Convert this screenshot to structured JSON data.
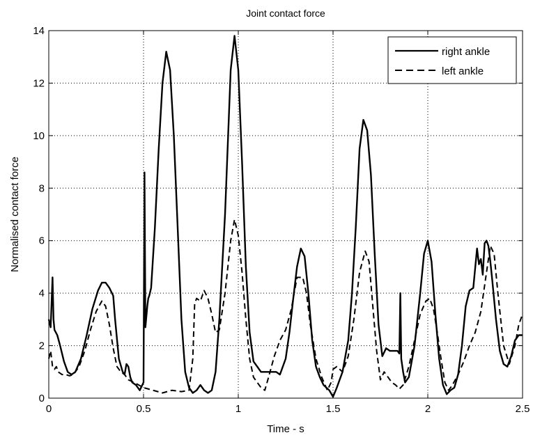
{
  "chart_data": {
    "type": "line",
    "title": "Joint contact force",
    "xlabel": "Time - s",
    "ylabel": "Normalised contact force",
    "xlim": [
      0,
      2.5
    ],
    "ylim": [
      0,
      14
    ],
    "xticks": [
      0,
      0.5,
      1,
      1.5,
      2,
      2.5
    ],
    "xtick_labels": [
      "0",
      "0.5",
      "1",
      "1.5",
      "2",
      "2.5"
    ],
    "yticks": [
      0,
      2,
      4,
      6,
      8,
      10,
      12,
      14
    ],
    "ytick_labels": [
      "0",
      "2",
      "4",
      "6",
      "8",
      "10",
      "12",
      "14"
    ],
    "grid": true,
    "grid_style": "dotted",
    "legend": "top-right",
    "series": [
      {
        "name": "right ankle",
        "style": "solid",
        "color": "#000000",
        "x": [
          0,
          0.01,
          0.02,
          0.025,
          0.03,
          0.045,
          0.06,
          0.08,
          0.1,
          0.12,
          0.14,
          0.17,
          0.2,
          0.23,
          0.26,
          0.28,
          0.3,
          0.32,
          0.34,
          0.35,
          0.37,
          0.39,
          0.4,
          0.41,
          0.42,
          0.43,
          0.44,
          0.46,
          0.48,
          0.5,
          0.505,
          0.51,
          0.52,
          0.525,
          0.53,
          0.54,
          0.56,
          0.58,
          0.6,
          0.62,
          0.64,
          0.66,
          0.68,
          0.7,
          0.72,
          0.74,
          0.76,
          0.78,
          0.8,
          0.82,
          0.84,
          0.86,
          0.88,
          0.9,
          0.93,
          0.96,
          0.98,
          1.0,
          1.02,
          1.04,
          1.06,
          1.08,
          1.1,
          1.12,
          1.14,
          1.17,
          1.2,
          1.22,
          1.25,
          1.27,
          1.29,
          1.31,
          1.33,
          1.35,
          1.37,
          1.39,
          1.41,
          1.43,
          1.45,
          1.48,
          1.5,
          1.52,
          1.55,
          1.58,
          1.6,
          1.62,
          1.64,
          1.66,
          1.68,
          1.7,
          1.72,
          1.74,
          1.76,
          1.78,
          1.8,
          1.82,
          1.84,
          1.85,
          1.855,
          1.86,
          1.87,
          1.88,
          1.9,
          1.93,
          1.96,
          1.98,
          2.0,
          2.02,
          2.04,
          2.06,
          2.08,
          2.1,
          2.12,
          2.14,
          2.16,
          2.18,
          2.2,
          2.22,
          2.24,
          2.26,
          2.27,
          2.28,
          2.29,
          2.3,
          2.31,
          2.32,
          2.33,
          2.34,
          2.36,
          2.38,
          2.4,
          2.42,
          2.44,
          2.46,
          2.48,
          2.5
        ],
        "y": [
          3.0,
          2.7,
          4.6,
          3.0,
          2.6,
          2.4,
          2.0,
          1.4,
          1.0,
          0.9,
          1.0,
          1.5,
          2.4,
          3.4,
          4.1,
          4.4,
          4.4,
          4.2,
          3.9,
          3.0,
          1.5,
          1.0,
          0.9,
          1.3,
          1.2,
          0.8,
          0.6,
          0.5,
          0.3,
          0.6,
          8.6,
          2.7,
          3.5,
          3.8,
          3.9,
          4.2,
          6.5,
          9.5,
          12.0,
          13.2,
          12.5,
          10.0,
          6.5,
          3.0,
          1.0,
          0.4,
          0.2,
          0.3,
          0.5,
          0.3,
          0.2,
          0.3,
          1.0,
          3.0,
          7.0,
          12.5,
          13.8,
          12.5,
          9.0,
          5.0,
          2.5,
          1.4,
          1.2,
          1.0,
          1.0,
          1.0,
          1.0,
          0.9,
          1.5,
          2.5,
          3.8,
          5.0,
          5.7,
          5.4,
          4.0,
          2.2,
          1.2,
          0.8,
          0.5,
          0.3,
          0.05,
          0.4,
          1.0,
          2.2,
          4.0,
          6.5,
          9.5,
          10.6,
          10.2,
          8.5,
          5.5,
          2.8,
          1.6,
          1.9,
          1.8,
          1.8,
          1.8,
          1.7,
          4.0,
          1.5,
          1.0,
          0.6,
          0.8,
          2.0,
          4.0,
          5.5,
          6.0,
          5.2,
          3.2,
          1.5,
          0.5,
          0.15,
          0.3,
          0.4,
          0.9,
          2.0,
          3.5,
          4.1,
          4.2,
          5.7,
          5.1,
          5.3,
          4.7,
          5.9,
          6.0,
          5.8,
          5.2,
          4.5,
          3.0,
          1.8,
          1.3,
          1.2,
          1.6,
          2.2,
          2.4,
          2.4
        ]
      },
      {
        "name": "left ankle",
        "style": "dashed",
        "color": "#000000",
        "x": [
          0,
          0.01,
          0.02,
          0.03,
          0.04,
          0.05,
          0.07,
          0.09,
          0.11,
          0.13,
          0.16,
          0.19,
          0.22,
          0.25,
          0.28,
          0.3,
          0.32,
          0.34,
          0.36,
          0.38,
          0.4,
          0.42,
          0.45,
          0.5,
          0.55,
          0.6,
          0.65,
          0.7,
          0.74,
          0.76,
          0.77,
          0.78,
          0.8,
          0.82,
          0.84,
          0.86,
          0.88,
          0.9,
          0.93,
          0.96,
          0.98,
          1.0,
          1.02,
          1.04,
          1.06,
          1.08,
          1.1,
          1.12,
          1.14,
          1.16,
          1.19,
          1.22,
          1.25,
          1.28,
          1.31,
          1.34,
          1.36,
          1.38,
          1.41,
          1.44,
          1.47,
          1.49,
          1.5,
          1.52,
          1.55,
          1.58,
          1.61,
          1.64,
          1.67,
          1.69,
          1.71,
          1.73,
          1.75,
          1.77,
          1.79,
          1.81,
          1.83,
          1.85,
          1.87,
          1.9,
          1.93,
          1.96,
          1.99,
          2.01,
          2.03,
          2.05,
          2.07,
          2.09,
          2.11,
          2.13,
          2.16,
          2.19,
          2.22,
          2.25,
          2.28,
          2.31,
          2.33,
          2.35,
          2.37,
          2.4,
          2.43,
          2.46,
          2.48,
          2.5
        ],
        "y": [
          1.5,
          1.8,
          1.2,
          1.1,
          1.2,
          1.0,
          0.9,
          0.9,
          0.85,
          0.9,
          1.2,
          1.8,
          2.6,
          3.3,
          3.7,
          3.5,
          2.8,
          1.9,
          1.2,
          1.0,
          0.9,
          0.7,
          0.6,
          0.4,
          0.3,
          0.2,
          0.3,
          0.25,
          0.3,
          1.5,
          3.6,
          3.8,
          3.7,
          4.1,
          3.8,
          3.2,
          2.5,
          2.6,
          4.0,
          6.0,
          6.8,
          6.2,
          4.8,
          3.0,
          1.5,
          0.8,
          0.6,
          0.4,
          0.3,
          0.8,
          1.6,
          2.2,
          2.6,
          3.4,
          4.6,
          4.6,
          4.0,
          2.8,
          1.5,
          0.8,
          0.3,
          0.6,
          1.1,
          1.2,
          1.0,
          1.6,
          3.0,
          4.8,
          5.6,
          5.2,
          3.5,
          1.8,
          0.7,
          1.0,
          0.8,
          0.6,
          0.5,
          0.35,
          0.5,
          1.2,
          2.2,
          3.2,
          3.7,
          3.8,
          3.4,
          2.5,
          1.5,
          0.6,
          0.3,
          0.5,
          0.9,
          1.4,
          2.0,
          2.5,
          3.3,
          4.8,
          5.8,
          5.5,
          4.0,
          2.0,
          1.3,
          2.0,
          2.8,
          3.2
        ]
      }
    ]
  }
}
